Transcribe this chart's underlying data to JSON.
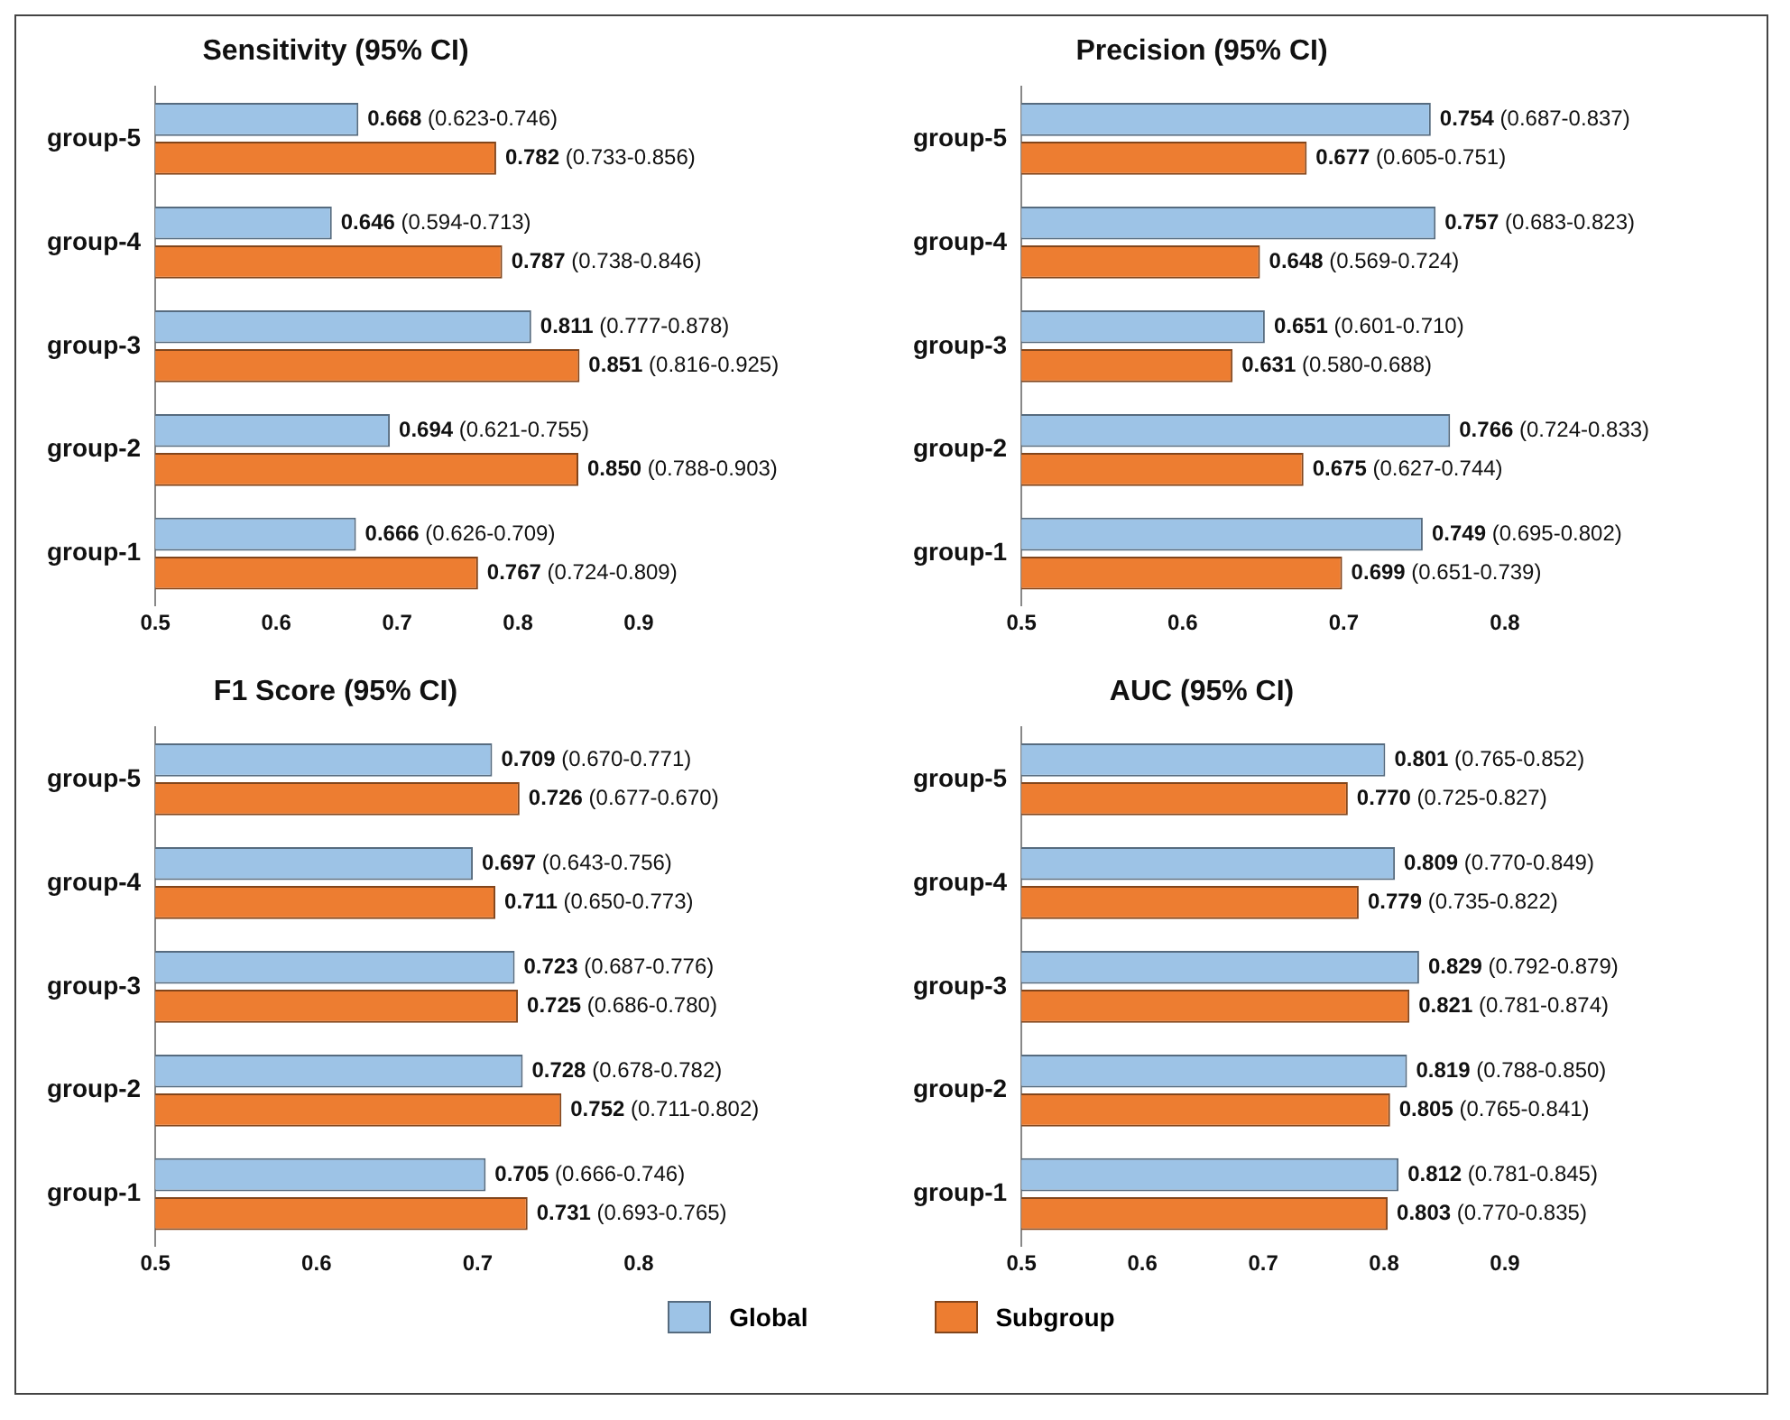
{
  "chart_data": [
    {
      "type": "bar",
      "orientation": "horizontal",
      "title": "Sensitivity (95% CI)",
      "categories": [
        "group-5",
        "group-4",
        "group-3",
        "group-2",
        "group-1"
      ],
      "xlim": [
        0.5,
        0.9
      ],
      "xticks": [
        0.5,
        0.6,
        0.7,
        0.8,
        0.9
      ],
      "grid": false,
      "legend": "bottom",
      "series": [
        {
          "name": "Global",
          "color": "#9dc3e6",
          "values": [
            0.668,
            0.646,
            0.811,
            0.694,
            0.666
          ],
          "value_labels": [
            "0.668 (0.623-0.746)",
            "0.646 (0.594-0.713)",
            "0.811 (0.777-0.878)",
            "0.694 (0.621-0.755)",
            "0.666 (0.626-0.709)"
          ]
        },
        {
          "name": "Subgroup",
          "color": "#ed7d31",
          "values": [
            0.782,
            0.787,
            0.851,
            0.85,
            0.767
          ],
          "value_labels": [
            "0.782 (0.733-0.856)",
            "0.787 (0.738-0.846)",
            "0.851 (0.816-0.925)",
            "0.850 (0.788-0.903)",
            "0.767 (0.724-0.809)"
          ]
        }
      ]
    },
    {
      "type": "bar",
      "orientation": "horizontal",
      "title": "Precision (95% CI)",
      "categories": [
        "group-5",
        "group-4",
        "group-3",
        "group-2",
        "group-1"
      ],
      "xlim": [
        0.5,
        0.8
      ],
      "xticks": [
        0.5,
        0.6,
        0.7,
        0.8
      ],
      "grid": false,
      "series": [
        {
          "color": "#9dc3e6",
          "values": [
            0.754,
            0.757,
            0.651,
            0.766,
            0.749
          ],
          "value_labels": [
            "0.754 (0.687-0.837)",
            "0.757 (0.683-0.823)",
            "0.651 (0.601-0.710)",
            "0.766 (0.724-0.833)",
            "0.749 (0.695-0.802)"
          ]
        },
        {
          "color": "#ed7d31",
          "values": [
            0.677,
            0.648,
            0.631,
            0.675,
            0.699
          ],
          "value_labels": [
            "0.677 (0.605-0.751)",
            "0.648 (0.569-0.724)",
            "0.631 (0.580-0.688)",
            "0.675 (0.627-0.744)",
            "0.699 (0.651-0.739)"
          ]
        }
      ]
    },
    {
      "type": "bar",
      "orientation": "horizontal",
      "title": "F1 Score (95% CI)",
      "categories": [
        "group-5",
        "group-4",
        "group-3",
        "group-2",
        "group-1"
      ],
      "xlim": [
        0.5,
        0.8
      ],
      "xticks": [
        0.5,
        0.6,
        0.7,
        0.8
      ],
      "grid": false,
      "series": [
        {
          "color": "#9dc3e6",
          "values": [
            0.709,
            0.697,
            0.723,
            0.728,
            0.705
          ],
          "value_labels": [
            "0.709 (0.670-0.771)",
            "0.697 (0.643-0.756)",
            "0.723 (0.687-0.776)",
            "0.728 (0.678-0.782)",
            "0.705 (0.666-0.746)"
          ]
        },
        {
          "color": "#ed7d31",
          "values": [
            0.726,
            0.711,
            0.725,
            0.752,
            0.731
          ],
          "value_labels": [
            "0.726 (0.677-0.670)",
            "0.711 (0.650-0.773)",
            "0.725 (0.686-0.780)",
            "0.752 (0.711-0.802)",
            "0.731 (0.693-0.765)"
          ]
        }
      ]
    },
    {
      "type": "bar",
      "orientation": "horizontal",
      "title": "AUC (95% CI)",
      "categories": [
        "group-5",
        "group-4",
        "group-3",
        "group-2",
        "group-1"
      ],
      "xlim": [
        0.5,
        0.9
      ],
      "xticks": [
        0.5,
        0.6,
        0.7,
        0.8,
        0.9
      ],
      "grid": false,
      "series": [
        {
          "color": "#9dc3e6",
          "values": [
            0.801,
            0.809,
            0.829,
            0.819,
            0.812
          ],
          "value_labels": [
            "0.801 (0.765-0.852)",
            "0.809 (0.770-0.849)",
            "0.829 (0.792-0.879)",
            "0.819 (0.788-0.850)",
            "0.812 (0.781-0.845)"
          ]
        },
        {
          "color": "#ed7d31",
          "values": [
            0.77,
            0.779,
            0.821,
            0.805,
            0.803
          ],
          "value_labels": [
            "0.770 (0.725-0.827)",
            "0.779 (0.735-0.822)",
            "0.821 (0.781-0.874)",
            "0.805 (0.765-0.841)",
            "0.803 (0.770-0.835)"
          ]
        }
      ]
    }
  ]
}
